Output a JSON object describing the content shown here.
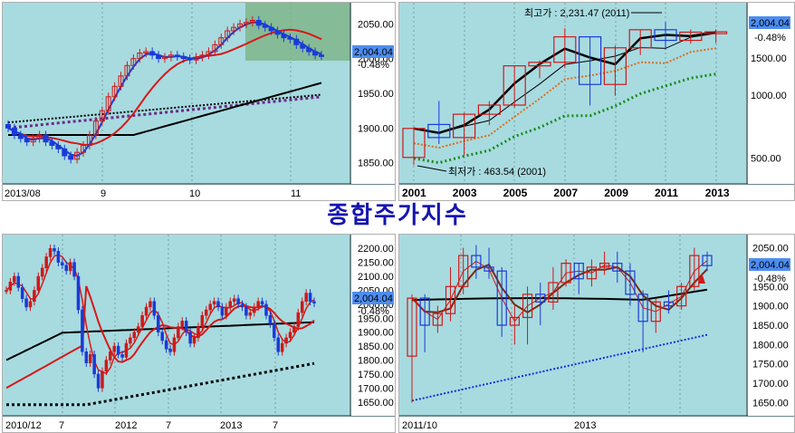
{
  "title": "종합주가지수",
  "colors": {
    "background": "#a7dbe0",
    "up": "#d01818",
    "down": "#1a3ad8",
    "ma_fast": "#d81818",
    "ma_slow": "#000000"
  },
  "chart_data": [
    {
      "type": "candlestick",
      "panel": "daily",
      "x_labels": [
        "2013/08",
        "9",
        "10",
        "11"
      ],
      "y_ticks": [
        "2050.00",
        "2000.00",
        "1950.00",
        "1900.00",
        "1850.00"
      ],
      "ylim": [
        1830,
        2070
      ],
      "last_value": "2,004.04",
      "change": "-0.48%",
      "close_series": [
        1900,
        1890,
        1885,
        1880,
        1885,
        1890,
        1880,
        1875,
        1870,
        1860,
        1855,
        1865,
        1875,
        1890,
        1910,
        1925,
        1945,
        1960,
        1975,
        1990,
        2000,
        2008,
        2010,
        2005,
        2000,
        2002,
        2005,
        2003,
        2000,
        1998,
        2002,
        2005,
        2010,
        2020,
        2030,
        2040,
        2045,
        2050,
        2052,
        2055,
        2048,
        2045,
        2040,
        2035,
        2030,
        2028,
        2020,
        2015,
        2010,
        2005,
        2004
      ]
    },
    {
      "type": "candlestick",
      "panel": "yearly",
      "x_labels": [
        "2001",
        "2003",
        "2005",
        "2007",
        "2009",
        "2011",
        "2013"
      ],
      "y_ticks": [
        "2,004.04",
        "-0.48%",
        "1500.00",
        "1000.00",
        "500.00"
      ],
      "log_scale": true,
      "high_annotation": "최고가 : 2,231.47 (2011)",
      "low_annotation": "최저가 : 463.54 (2001)",
      "candles": [
        {
          "year": "2001",
          "open": 504,
          "close": 693,
          "high": 704,
          "low": 463
        },
        {
          "year": "2002",
          "open": 724,
          "close": 627,
          "high": 937,
          "low": 584
        },
        {
          "year": "2003",
          "open": 627,
          "close": 810,
          "high": 823,
          "low": 515
        },
        {
          "year": "2004",
          "open": 810,
          "close": 896,
          "high": 936,
          "low": 719
        },
        {
          "year": "2005",
          "open": 896,
          "close": 1379,
          "high": 1379,
          "low": 870
        },
        {
          "year": "2006",
          "open": 1379,
          "close": 1434,
          "high": 1464,
          "low": 1203
        },
        {
          "year": "2007",
          "open": 1434,
          "close": 1897,
          "high": 2085,
          "low": 1345
        },
        {
          "year": "2008",
          "open": 1897,
          "close": 1124,
          "high": 1901,
          "low": 892
        },
        {
          "year": "2009",
          "open": 1124,
          "close": 1682,
          "high": 1723,
          "low": 992
        },
        {
          "year": "2010",
          "open": 1682,
          "close": 2051,
          "high": 2052,
          "low": 1552
        },
        {
          "year": "2011",
          "open": 2051,
          "close": 1825,
          "high": 2231,
          "low": 1644
        },
        {
          "year": "2012",
          "open": 1825,
          "close": 1997,
          "high": 2057,
          "low": 1758
        },
        {
          "year": "2013",
          "open": 1997,
          "close": 2004,
          "high": 2063,
          "low": 1770
        }
      ]
    },
    {
      "type": "candlestick",
      "panel": "weekly",
      "x_labels": [
        "2010/12",
        "7",
        "2012",
        "7",
        "2013",
        "7"
      ],
      "y_ticks": [
        "2200.00",
        "2150.00",
        "2100.00",
        "2050.00",
        "2000.00",
        "1950.00",
        "1900.00",
        "1850.00",
        "1800.00",
        "1750.00",
        "1700.00",
        "1650.00"
      ],
      "ylim": [
        1620,
        2230
      ],
      "last_value": "2,004.04",
      "change": "-0.48%",
      "close_series": [
        2050,
        2080,
        2100,
        2060,
        2020,
        1990,
        2010,
        2050,
        2100,
        2130,
        2170,
        2200,
        2190,
        2150,
        2140,
        2120,
        2150,
        2100,
        1980,
        1830,
        1790,
        1820,
        1750,
        1700,
        1760,
        1800,
        1830,
        1850,
        1820,
        1810,
        1860,
        1880,
        1900,
        1920,
        1960,
        1990,
        2010,
        1960,
        1900,
        1870,
        1840,
        1830,
        1880,
        1920,
        1940,
        1900,
        1860,
        1880,
        1920,
        1960,
        1980,
        2000,
        2010,
        1990,
        1960,
        1990,
        2010,
        2020,
        2000,
        1990,
        1960,
        1970,
        1990,
        2010,
        2000,
        1960,
        1930,
        1880,
        1830,
        1860,
        1880,
        1900,
        1920,
        1970,
        2010,
        2040,
        2010,
        2004
      ]
    },
    {
      "type": "candlestick",
      "panel": "monthly",
      "x_labels": [
        "2011/10",
        "2013"
      ],
      "y_ticks": [
        "2050.00",
        "2,004.04",
        "-0.48%",
        "1950.00",
        "1900.00",
        "1850.00",
        "1800.00",
        "1750.00",
        "1700.00",
        "1650.00"
      ],
      "ylim": [
        1630,
        2070
      ],
      "last_value": "2,004.04",
      "change": "-0.48%",
      "candles": [
        {
          "open": 1770,
          "close": 1920,
          "high": 1930,
          "low": 1650
        },
        {
          "open": 1920,
          "close": 1850,
          "high": 1930,
          "low": 1780
        },
        {
          "open": 1850,
          "close": 1880,
          "high": 1900,
          "low": 1830
        },
        {
          "open": 1880,
          "close": 1950,
          "high": 2000,
          "low": 1860
        },
        {
          "open": 1950,
          "close": 2030,
          "high": 2050,
          "low": 1930
        },
        {
          "open": 2030,
          "close": 2000,
          "high": 2057,
          "low": 1970
        },
        {
          "open": 2000,
          "close": 1990,
          "high": 2050,
          "low": 1970
        },
        {
          "open": 1990,
          "close": 1850,
          "high": 2000,
          "low": 1820
        },
        {
          "open": 1850,
          "close": 1870,
          "high": 1900,
          "low": 1800
        },
        {
          "open": 1870,
          "close": 1930,
          "high": 1950,
          "low": 1800
        },
        {
          "open": 1930,
          "close": 1910,
          "high": 1960,
          "low": 1850
        },
        {
          "open": 1910,
          "close": 1960,
          "high": 2000,
          "low": 1890
        },
        {
          "open": 1960,
          "close": 2010,
          "high": 2020,
          "low": 1950
        },
        {
          "open": 2010,
          "close": 1970,
          "high": 2010,
          "low": 1930
        },
        {
          "open": 1970,
          "close": 2000,
          "high": 2020,
          "low": 1950
        },
        {
          "open": 2000,
          "close": 2010,
          "high": 2040,
          "low": 1980
        },
        {
          "open": 2010,
          "close": 1990,
          "high": 2040,
          "low": 1960
        },
        {
          "open": 1990,
          "close": 1930,
          "high": 2010,
          "low": 1900
        },
        {
          "open": 1930,
          "close": 1860,
          "high": 1940,
          "low": 1780
        },
        {
          "open": 1860,
          "close": 1910,
          "high": 1920,
          "low": 1830
        },
        {
          "open": 1910,
          "close": 1900,
          "high": 1940,
          "low": 1880
        },
        {
          "open": 1900,
          "close": 1950,
          "high": 1960,
          "low": 1890
        },
        {
          "open": 1950,
          "close": 2030,
          "high": 2050,
          "low": 1940
        },
        {
          "open": 2030,
          "close": 2004,
          "high": 2040,
          "low": 1990
        }
      ]
    }
  ]
}
